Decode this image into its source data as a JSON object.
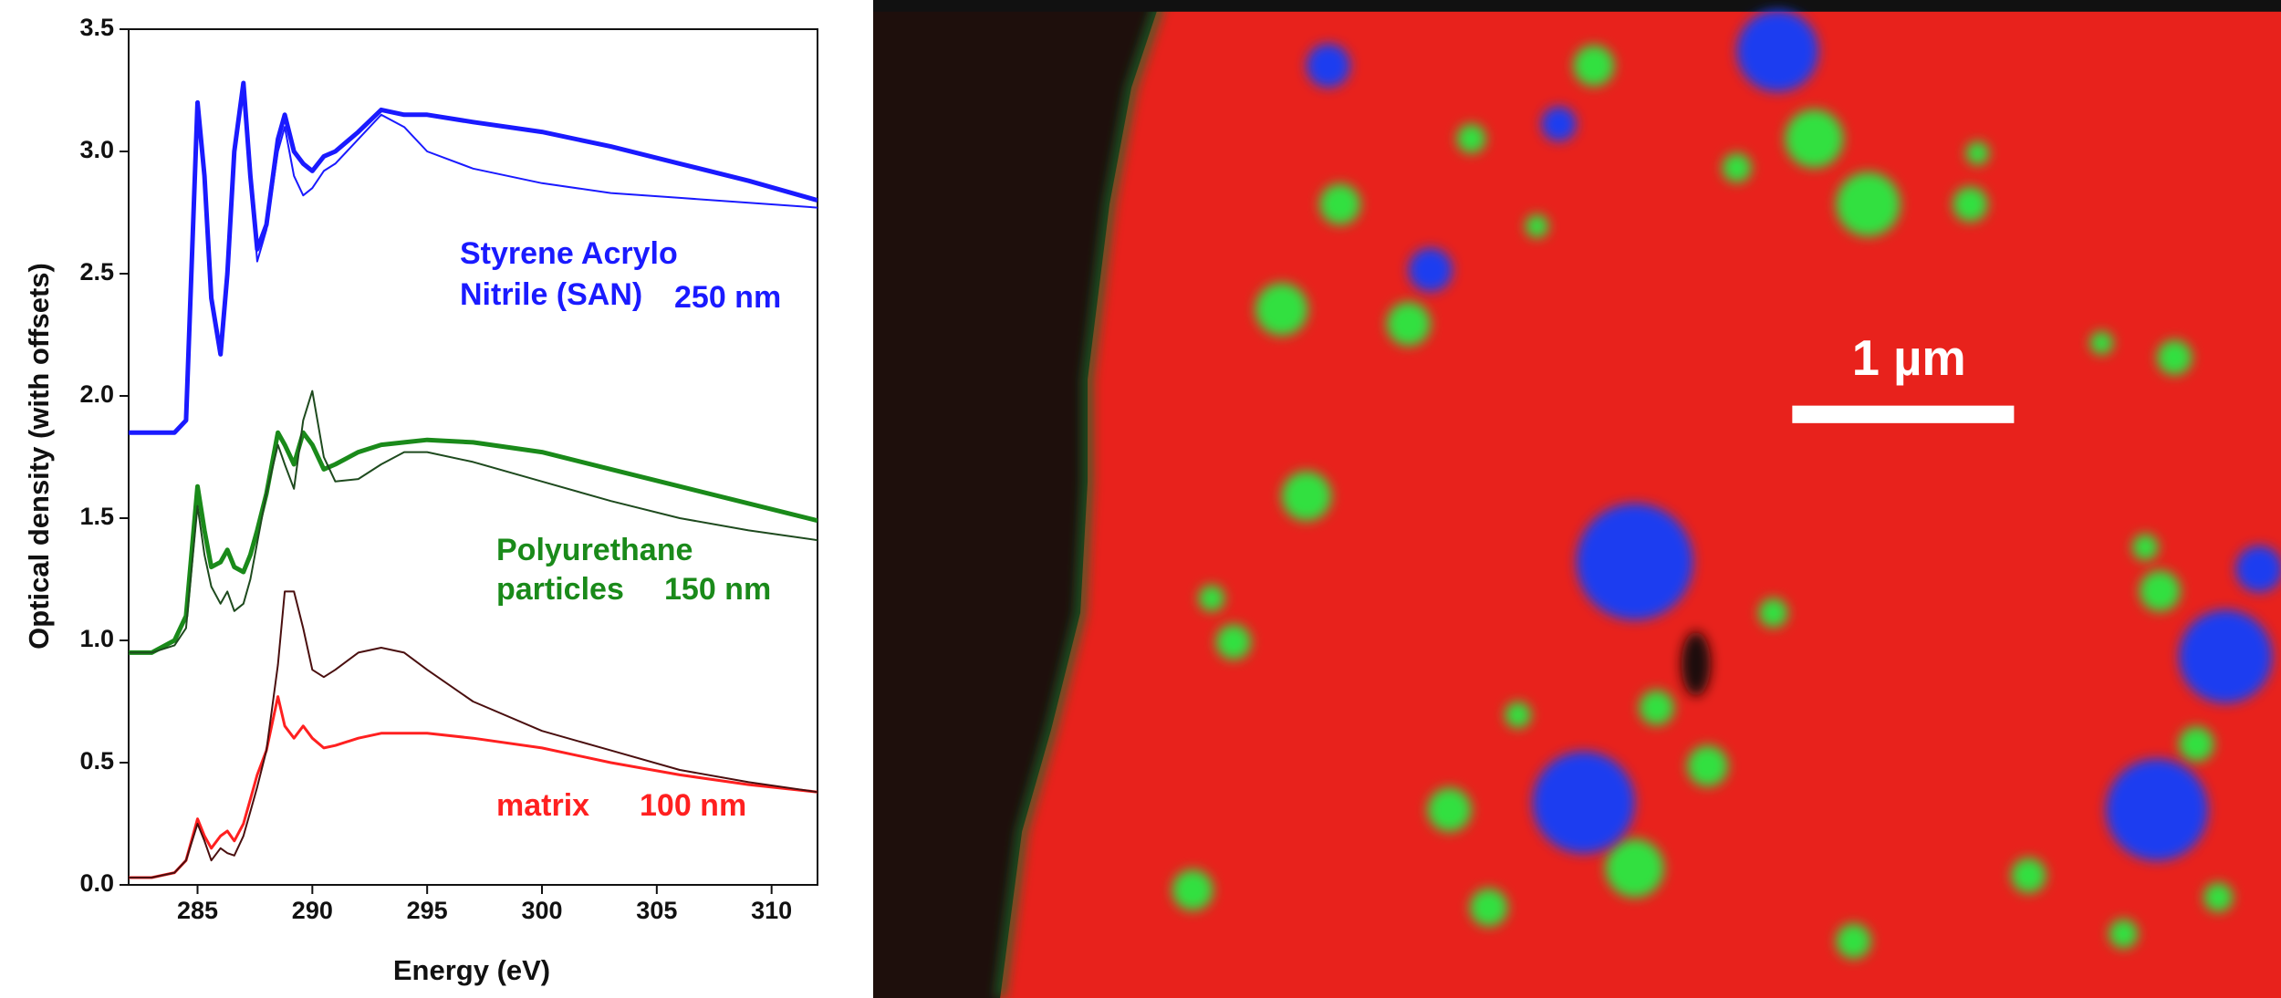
{
  "chart_data": {
    "type": "line",
    "x_label": "Energy (eV)",
    "y_label": "Optical density (with offsets)",
    "x": [
      282,
      283,
      284,
      284.5,
      285,
      285.3,
      285.6,
      286,
      286.3,
      286.6,
      287,
      287.3,
      287.6,
      288,
      288.5,
      288.8,
      289.2,
      289.6,
      290,
      290.5,
      291,
      292,
      293,
      294,
      295,
      297,
      300,
      303,
      306,
      309,
      312
    ],
    "series": [
      {
        "color": "#1a1aff",
        "linewidth": 5,
        "values": [
          1.85,
          1.85,
          1.85,
          1.9,
          3.2,
          2.9,
          2.4,
          2.17,
          2.5,
          3.0,
          3.28,
          2.9,
          2.6,
          2.7,
          3.05,
          3.15,
          3.0,
          2.95,
          2.92,
          2.98,
          3.0,
          3.08,
          3.17,
          3.15,
          3.15,
          3.12,
          3.08,
          3.02,
          2.95,
          2.88,
          2.8
        ]
      },
      {
        "color": "#1a1aff",
        "linewidth": 2,
        "values": [
          1.85,
          1.85,
          1.85,
          1.9,
          3.2,
          2.9,
          2.4,
          2.17,
          2.5,
          3.0,
          3.28,
          2.9,
          2.55,
          2.68,
          3.0,
          3.1,
          2.9,
          2.82,
          2.85,
          2.92,
          2.95,
          3.05,
          3.15,
          3.1,
          3.0,
          2.93,
          2.87,
          2.83,
          2.81,
          2.79,
          2.77
        ]
      },
      {
        "color": "#1a8a1a",
        "linewidth": 5,
        "values": [
          0.95,
          0.95,
          1.0,
          1.1,
          1.63,
          1.45,
          1.3,
          1.32,
          1.37,
          1.3,
          1.28,
          1.35,
          1.45,
          1.6,
          1.85,
          1.8,
          1.72,
          1.85,
          1.8,
          1.7,
          1.72,
          1.77,
          1.8,
          1.81,
          1.82,
          1.81,
          1.77,
          1.7,
          1.63,
          1.56,
          1.49
        ]
      },
      {
        "color": "#1e4a1e",
        "linewidth": 2,
        "values": [
          0.95,
          0.95,
          0.98,
          1.05,
          1.55,
          1.35,
          1.22,
          1.15,
          1.2,
          1.12,
          1.15,
          1.25,
          1.4,
          1.6,
          1.8,
          1.72,
          1.62,
          1.9,
          2.02,
          1.75,
          1.65,
          1.66,
          1.72,
          1.77,
          1.77,
          1.73,
          1.65,
          1.57,
          1.5,
          1.45,
          1.41
        ]
      },
      {
        "color": "#ff2020",
        "linewidth": 3,
        "values": [
          0.03,
          0.03,
          0.05,
          0.1,
          0.27,
          0.2,
          0.15,
          0.2,
          0.22,
          0.18,
          0.25,
          0.35,
          0.45,
          0.55,
          0.77,
          0.65,
          0.6,
          0.65,
          0.6,
          0.56,
          0.57,
          0.6,
          0.62,
          0.62,
          0.62,
          0.6,
          0.56,
          0.5,
          0.45,
          0.41,
          0.38
        ]
      },
      {
        "color": "#4a0f0f",
        "linewidth": 2,
        "values": [
          0.03,
          0.03,
          0.05,
          0.1,
          0.25,
          0.18,
          0.1,
          0.15,
          0.13,
          0.12,
          0.2,
          0.3,
          0.4,
          0.55,
          0.9,
          1.2,
          1.2,
          1.05,
          0.88,
          0.85,
          0.88,
          0.95,
          0.97,
          0.95,
          0.88,
          0.75,
          0.63,
          0.55,
          0.47,
          0.42,
          0.38
        ]
      }
    ],
    "xlim": [
      282,
      312
    ],
    "xticks": [
      285,
      290,
      295,
      300,
      305,
      310
    ],
    "ylim": [
      0,
      3.5
    ],
    "yticks": [
      {
        "value": 0,
        "label": "0.0"
      },
      0.5,
      {
        "value": 1,
        "label": "1.0"
      },
      1.5,
      {
        "value": 2,
        "label": "2.0"
      },
      2.5,
      {
        "value": 3,
        "label": "3.0"
      },
      3.5
    ],
    "annotations": [
      {
        "text": "Styrene Acrylo",
        "color": "#1a1aff"
      },
      {
        "text": "Nitrile (SAN)",
        "color": "#1a1aff"
      },
      {
        "text": "250 nm",
        "color": "#1a1aff"
      },
      {
        "text": "Polyurethane",
        "color": "#1a8a1a"
      },
      {
        "text": "particles",
        "color": "#1a8a1a"
      },
      {
        "text": "150 nm",
        "color": "#1a8a1a"
      },
      {
        "text": "matrix",
        "color": "#ff2020"
      },
      {
        "text": "100 nm",
        "color": "#ff2020"
      }
    ]
  },
  "micrograph": {
    "scale_bar": "1 µm"
  }
}
